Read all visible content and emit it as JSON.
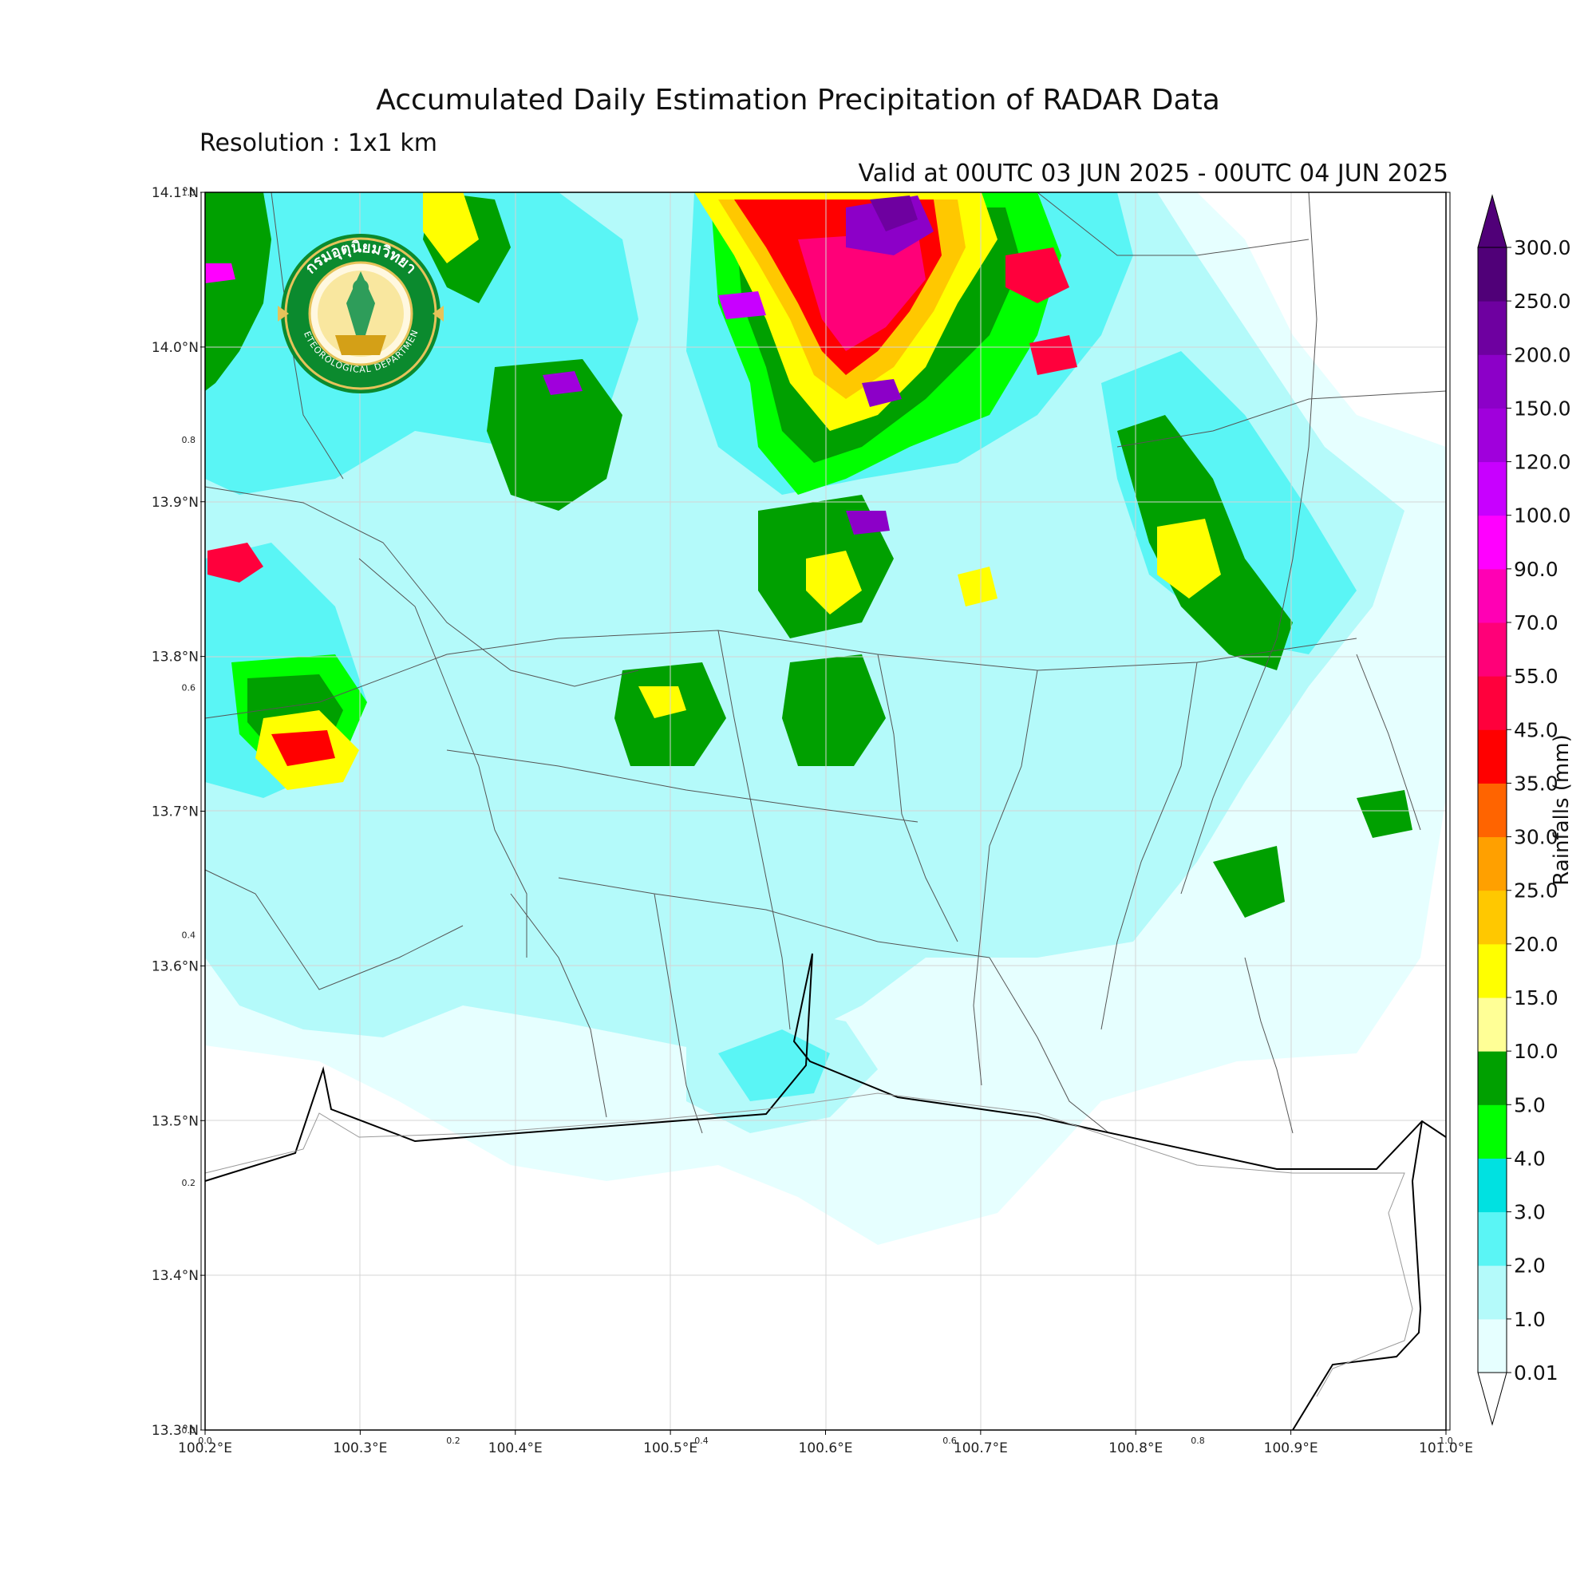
{
  "title": "Accumulated Daily Estimation Precipitation of RADAR Data",
  "resolution": "Resolution : 1x1 km",
  "valid": "Valid at 00UTC 03 JUN 2025 - 00UTC 04 JUN 2025",
  "logo": {
    "thai_name": "กรมอุตุนิยมวิทยา",
    "english_name": "METEOROLOGICAL DEPARTMENT"
  },
  "map": {
    "lon_range": [
      100.2,
      101.0
    ],
    "lat_range": [
      13.3,
      14.1
    ],
    "lon_ticks": [
      "100.2°E",
      "100.3°E",
      "100.4°E",
      "100.5°E",
      "100.6°E",
      "100.7°E",
      "100.8°E",
      "100.9°E",
      "101.0°E"
    ],
    "lat_ticks": [
      "13.3°N",
      "13.4°N",
      "13.5°N",
      "13.6°N",
      "13.7°N",
      "13.8°N",
      "13.9°N",
      "14.0°N",
      "14.1°N"
    ],
    "minor_x_ticks": [
      "0.0",
      "0.2",
      "0.4",
      "0.6",
      "0.8",
      "1.0"
    ],
    "minor_y_ticks": [
      "0.0",
      "0.2",
      "0.4",
      "0.6",
      "0.8",
      "1.0"
    ],
    "grid": true
  },
  "colorbar": {
    "title": "Rainfalls (mm)",
    "levels": [
      "0.01",
      "1.0",
      "2.0",
      "3.0",
      "4.0",
      "5.0",
      "10.0",
      "15.0",
      "20.0",
      "25.0",
      "30.0",
      "35.0",
      "45.0",
      "55.0",
      "70.0",
      "90.0",
      "100.0",
      "120.0",
      "150.0",
      "200.0",
      "250.0",
      "300.0"
    ],
    "colors": [
      "#e6ffff",
      "#b4fafa",
      "#5af5f5",
      "#00e1e1",
      "#00ff00",
      "#00a000",
      "#ffff96",
      "#ffff00",
      "#ffc800",
      "#ffa000",
      "#ff6400",
      "#ff0000",
      "#ff003c",
      "#ff0078",
      "#ff00b4",
      "#ff00ff",
      "#c800ff",
      "#a000dc",
      "#8c00c8",
      "#6e00a0",
      "#500078"
    ]
  }
}
